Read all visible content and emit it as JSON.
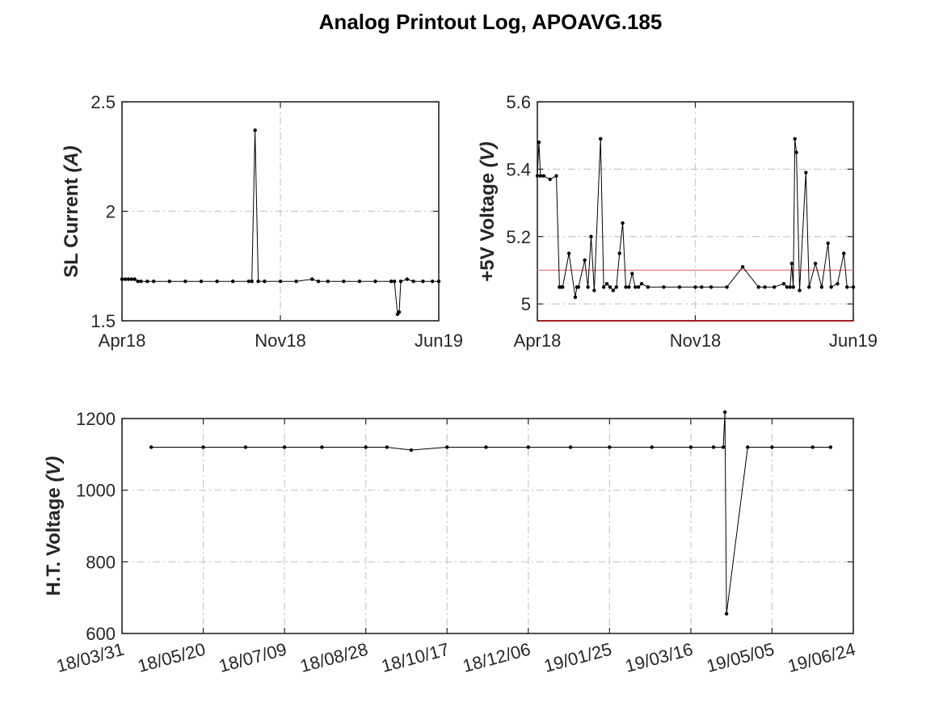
{
  "figure": {
    "title": "Analog Printout Log, APOAVG.185"
  },
  "chart_data": [
    {
      "id": "sl-current",
      "type": "line",
      "ylabel_main": "SL Current ",
      "ylabel_unit": "(A)",
      "xlabel": "",
      "x_ticks": [
        "Apr18",
        "Nov18",
        "Jun19"
      ],
      "x_tick_positions": [
        0,
        0.5,
        1
      ],
      "ylim": [
        1.5,
        2.5
      ],
      "y_ticks": [
        1.5,
        2,
        2.5
      ],
      "y_tick_labels": [
        "1.5",
        "2",
        "2.5"
      ],
      "grid": true,
      "series": [
        {
          "x": [
            0.0,
            0.01,
            0.02,
            0.03,
            0.04,
            0.05,
            0.06,
            0.08,
            0.1,
            0.15,
            0.2,
            0.25,
            0.3,
            0.35,
            0.4,
            0.41,
            0.42,
            0.43,
            0.45,
            0.5,
            0.55,
            0.6,
            0.62,
            0.65,
            0.7,
            0.75,
            0.8,
            0.85,
            0.86,
            0.87,
            0.875,
            0.88,
            0.9,
            0.92,
            0.95,
            0.98,
            1.0
          ],
          "y": [
            1.69,
            1.69,
            1.69,
            1.69,
            1.69,
            1.68,
            1.68,
            1.68,
            1.68,
            1.68,
            1.68,
            1.68,
            1.68,
            1.68,
            1.68,
            1.68,
            2.37,
            1.68,
            1.68,
            1.68,
            1.68,
            1.69,
            1.68,
            1.68,
            1.68,
            1.68,
            1.68,
            1.68,
            1.68,
            1.53,
            1.54,
            1.68,
            1.69,
            1.68,
            1.68,
            1.68,
            1.68
          ]
        }
      ]
    },
    {
      "id": "plus5v-voltage",
      "type": "line",
      "ylabel_main": "+5V Voltage ",
      "ylabel_unit": "(V)",
      "xlabel": "",
      "x_ticks": [
        "Apr18",
        "Nov18",
        "Jun19"
      ],
      "x_tick_positions": [
        0,
        0.5,
        1
      ],
      "ylim": [
        4.95,
        5.6
      ],
      "y_ticks": [
        5,
        5.2,
        5.4,
        5.6
      ],
      "y_tick_labels": [
        "5",
        "5.2",
        "5.4",
        "5.6"
      ],
      "grid": true,
      "limit_lines": [
        {
          "y": 5.1,
          "color": "#f08080"
        },
        {
          "y": 4.95,
          "color": "#b00000"
        }
      ],
      "series": [
        {
          "x": [
            0.0,
            0.005,
            0.01,
            0.02,
            0.04,
            0.06,
            0.07,
            0.075,
            0.08,
            0.1,
            0.12,
            0.125,
            0.13,
            0.15,
            0.16,
            0.17,
            0.18,
            0.2,
            0.21,
            0.22,
            0.23,
            0.24,
            0.25,
            0.26,
            0.27,
            0.28,
            0.29,
            0.3,
            0.31,
            0.32,
            0.33,
            0.35,
            0.4,
            0.45,
            0.5,
            0.52,
            0.55,
            0.6,
            0.65,
            0.7,
            0.72,
            0.75,
            0.78,
            0.79,
            0.8,
            0.805,
            0.81,
            0.815,
            0.82,
            0.83,
            0.85,
            0.86,
            0.88,
            0.9,
            0.92,
            0.93,
            0.95,
            0.97,
            0.98,
            1.0
          ],
          "y": [
            5.38,
            5.48,
            5.38,
            5.38,
            5.37,
            5.38,
            5.05,
            5.05,
            5.05,
            5.15,
            5.02,
            5.05,
            5.05,
            5.13,
            5.05,
            5.2,
            5.04,
            5.49,
            5.05,
            5.06,
            5.05,
            5.04,
            5.05,
            5.15,
            5.24,
            5.05,
            5.05,
            5.09,
            5.05,
            5.05,
            5.06,
            5.05,
            5.05,
            5.05,
            5.05,
            5.05,
            5.05,
            5.05,
            5.11,
            5.05,
            5.05,
            5.05,
            5.06,
            5.05,
            5.05,
            5.12,
            5.05,
            5.49,
            5.45,
            5.04,
            5.39,
            5.05,
            5.12,
            5.05,
            5.18,
            5.05,
            5.06,
            5.15,
            5.05,
            5.05
          ]
        }
      ]
    },
    {
      "id": "ht-voltage",
      "type": "line",
      "ylabel_main": "H.T. Voltage ",
      "ylabel_unit": "(V)",
      "xlabel": "",
      "x_ticks": [
        "18/03/31",
        "18/05/20",
        "18/07/09",
        "18/08/28",
        "18/10/17",
        "18/12/06",
        "19/01/25",
        "19/03/16",
        "19/05/05",
        "19/06/24"
      ],
      "x_range_dates": [
        "2018-03-31",
        "2019-06-24"
      ],
      "ylim": [
        600,
        1200
      ],
      "y_ticks": [
        600,
        800,
        1000,
        1200
      ],
      "y_tick_labels": [
        "600",
        "800",
        "1000",
        "1200"
      ],
      "grid": true,
      "series": [
        {
          "x": [
            "2018-04-18",
            "2018-05-20",
            "2018-06-15",
            "2018-07-09",
            "2018-08-01",
            "2018-08-28",
            "2018-09-10",
            "2018-09-25",
            "2018-10-17",
            "2018-11-10",
            "2018-12-06",
            "2019-01-01",
            "2019-01-25",
            "2019-02-20",
            "2019-03-16",
            "2019-03-30",
            "2019-04-05",
            "2019-04-06",
            "2019-04-07",
            "2019-04-20",
            "2019-05-05",
            "2019-05-30",
            "2019-06-10"
          ],
          "y": [
            1120,
            1120,
            1120,
            1120,
            1120,
            1120,
            1120,
            1112,
            1120,
            1120,
            1120,
            1120,
            1120,
            1120,
            1120,
            1120,
            1120,
            1218,
            655,
            1120,
            1120,
            1120,
            1120
          ]
        }
      ]
    }
  ]
}
